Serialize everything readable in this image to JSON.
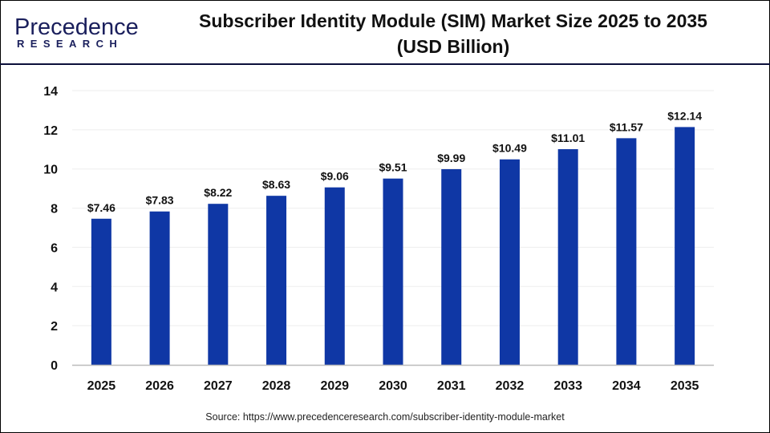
{
  "logo": {
    "line1": "Precedence",
    "line2": "RESEARCH"
  },
  "title_line1": "Subscriber Identity Module (SIM) Market Size 2025 to 2035",
  "title_line2": "(USD Billion)",
  "source": "Source: https://www.precedenceresearch.com/subscriber-identity-module-market",
  "colors": {
    "bar": "#0f37a5",
    "grid": "#eeeeee",
    "axis": "#bbbbbb",
    "header_line": "#0b0f3a"
  },
  "chart_data": {
    "type": "bar",
    "title": "Subscriber Identity Module (SIM) Market Size 2025 to 2035 (USD Billion)",
    "categories": [
      "2025",
      "2026",
      "2027",
      "2028",
      "2029",
      "2030",
      "2031",
      "2032",
      "2033",
      "2034",
      "2035"
    ],
    "values": [
      7.46,
      7.83,
      8.22,
      8.63,
      9.06,
      9.51,
      9.99,
      10.49,
      11.01,
      11.57,
      12.14
    ],
    "data_labels": [
      "$7.46",
      "$7.83",
      "$8.22",
      "$8.63",
      "$9.06",
      "$9.51",
      "$9.99",
      "$10.49",
      "$11.01",
      "$11.57",
      "$12.14"
    ],
    "yticks": [
      0,
      2,
      4,
      6,
      8,
      10,
      12,
      14
    ],
    "ylim": [
      0,
      14
    ],
    "xlabel": "",
    "ylabel": "",
    "grid": true,
    "legend": "none"
  }
}
